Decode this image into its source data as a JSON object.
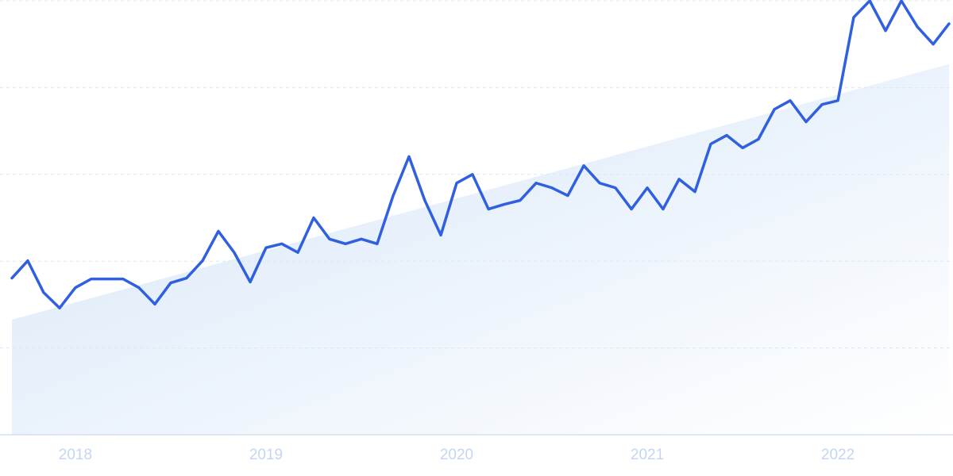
{
  "chart_data": {
    "type": "line",
    "x": [
      2017.667,
      2017.75,
      2017.833,
      2017.917,
      2018,
      2018.083,
      2018.167,
      2018.25,
      2018.333,
      2018.417,
      2018.5,
      2018.583,
      2018.667,
      2018.75,
      2018.833,
      2018.917,
      2019,
      2019.083,
      2019.167,
      2019.25,
      2019.333,
      2019.417,
      2019.5,
      2019.583,
      2019.667,
      2019.75,
      2019.833,
      2019.917,
      2020,
      2020.083,
      2020.167,
      2020.25,
      2020.333,
      2020.417,
      2020.5,
      2020.583,
      2020.667,
      2020.75,
      2020.833,
      2020.917,
      2021,
      2021.083,
      2021.167,
      2021.25,
      2021.333,
      2021.417,
      2021.5,
      2021.583,
      2021.667,
      2021.75,
      2021.833,
      2021.917,
      2022,
      2022.083,
      2022.167,
      2022.25,
      2022.333,
      2022.417,
      2022.5,
      2022.583
    ],
    "values": [
      36.1,
      40.1,
      32.8,
      29.2,
      33.9,
      35.9,
      35.9,
      35.9,
      33.9,
      30.1,
      35.0,
      36.1,
      40.1,
      46.9,
      42.0,
      35.2,
      43.1,
      44.0,
      42.0,
      50.0,
      45.1,
      44.0,
      45.1,
      44.0,
      55.1,
      64.1,
      54.0,
      46.0,
      58.0,
      60.0,
      52.0,
      53.1,
      54.0,
      58.0,
      56.9,
      55.1,
      62.0,
      58.0,
      56.9,
      52.0,
      56.9,
      52.0,
      58.9,
      56.0,
      67.0,
      69.0,
      66.1,
      68.1,
      75.0,
      77.0,
      72.1,
      76.1,
      77.0,
      96.2,
      100,
      93.1,
      100,
      94.0,
      90.0,
      94.7
    ],
    "color": "#3060e0",
    "trend": {
      "start": 26.5,
      "end": 85.4
    },
    "xlim": [
      2017.667,
      2022.583
    ],
    "xticks": [
      2018,
      2019,
      2020,
      2021,
      2022
    ],
    "ylim": [
      0,
      100
    ],
    "yticks": [
      0,
      20,
      40,
      60,
      80,
      100
    ],
    "grid": true
  }
}
